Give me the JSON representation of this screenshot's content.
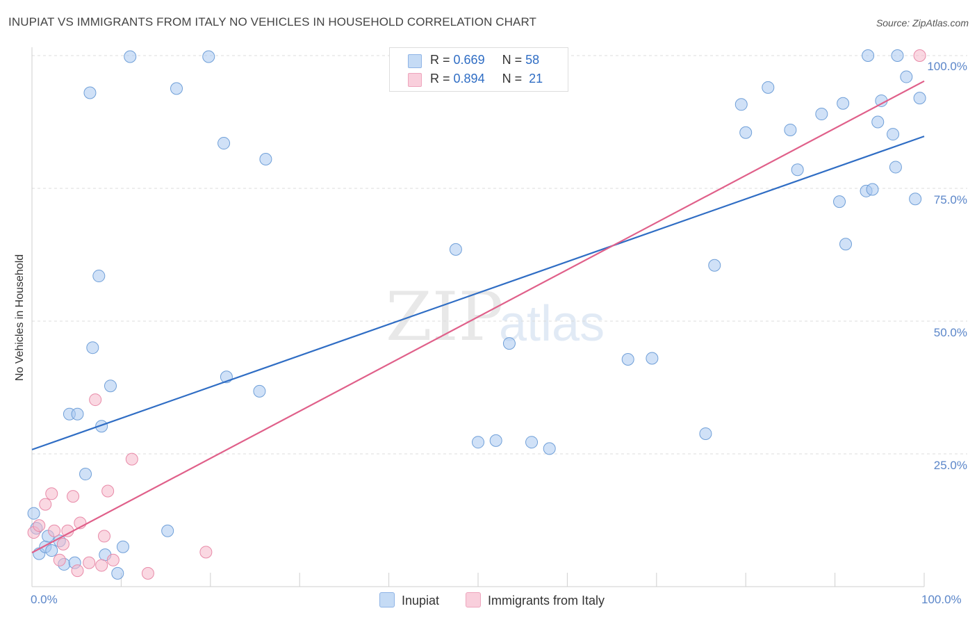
{
  "title": "INUPIAT VS IMMIGRANTS FROM ITALY NO VEHICLES IN HOUSEHOLD CORRELATION CHART",
  "source": "Source: ZipAtlas.com",
  "watermark": {
    "zip": "ZIP",
    "atlas": "atlas"
  },
  "chart_data": {
    "type": "scatter",
    "title": "INUPIAT VS IMMIGRANTS FROM ITALY NO VEHICLES IN HOUSEHOLD CORRELATION CHART",
    "xlabel": "",
    "ylabel": "No Vehicles in Household",
    "xlim": [
      0,
      100
    ],
    "ylim": [
      0,
      100
    ],
    "x_tick_labels": [
      "0.0%",
      "100.0%"
    ],
    "y_ticks": [
      25,
      50,
      75,
      100
    ],
    "y_tick_labels": [
      "25.0%",
      "50.0%",
      "75.0%",
      "100.0%"
    ],
    "grid": true,
    "legend": [
      {
        "name": "Inupiat",
        "r_label": "R =",
        "r": "0.669",
        "n_label": "N =",
        "n": "58",
        "color": "#a9c8f0"
      },
      {
        "name": "Immigrants from Italy",
        "r_label": "R =",
        "r": "0.894",
        "n_label": "N =",
        "n": "21",
        "color": "#f6b8cb"
      }
    ],
    "series": [
      {
        "name": "Inupiat",
        "color": "#a9c8f0",
        "stroke": "#6f9fd8",
        "trend": {
          "x": [
            0,
            100
          ],
          "y": [
            25.8,
            84.8
          ],
          "color": "#2f6dc4"
        },
        "points": [
          [
            0.2,
            13.8
          ],
          [
            0.8,
            6.2
          ],
          [
            1.5,
            7.5
          ],
          [
            1.8,
            9.5
          ],
          [
            2.2,
            6.8
          ],
          [
            3.1,
            8.6
          ],
          [
            3.6,
            4.2
          ],
          [
            4.8,
            4.5
          ],
          [
            4.2,
            32.5
          ],
          [
            5.1,
            32.5
          ],
          [
            6.0,
            21.2
          ],
          [
            6.5,
            93.0
          ],
          [
            6.8,
            45.0
          ],
          [
            7.5,
            58.5
          ],
          [
            7.8,
            30.2
          ],
          [
            8.2,
            6.0
          ],
          [
            8.8,
            37.8
          ],
          [
            9.6,
            2.5
          ],
          [
            10.2,
            7.5
          ],
          [
            11.0,
            99.8
          ],
          [
            15.2,
            10.5
          ],
          [
            16.2,
            93.8
          ],
          [
            19.8,
            99.8
          ],
          [
            21.5,
            83.5
          ],
          [
            21.8,
            39.5
          ],
          [
            25.5,
            36.8
          ],
          [
            26.2,
            80.5
          ],
          [
            47.5,
            63.5
          ],
          [
            50.0,
            27.2
          ],
          [
            52.0,
            27.5
          ],
          [
            53.5,
            45.8
          ],
          [
            56.0,
            27.2
          ],
          [
            58.0,
            26.0
          ],
          [
            66.8,
            42.8
          ],
          [
            69.5,
            43.0
          ],
          [
            75.5,
            28.8
          ],
          [
            76.5,
            60.5
          ],
          [
            79.5,
            90.8
          ],
          [
            80.0,
            85.5
          ],
          [
            82.5,
            94.0
          ],
          [
            85.0,
            86.0
          ],
          [
            85.8,
            78.5
          ],
          [
            88.5,
            89.0
          ],
          [
            90.5,
            72.5
          ],
          [
            90.9,
            91.0
          ],
          [
            91.2,
            64.5
          ],
          [
            93.5,
            74.5
          ],
          [
            93.7,
            100.0
          ],
          [
            94.2,
            74.8
          ],
          [
            94.8,
            87.5
          ],
          [
            95.2,
            91.5
          ],
          [
            96.5,
            85.2
          ],
          [
            96.8,
            79.0
          ],
          [
            97.0,
            100.0
          ],
          [
            98.0,
            96.0
          ],
          [
            99.0,
            73.0
          ],
          [
            99.5,
            92.0
          ],
          [
            0.5,
            11.0
          ]
        ]
      },
      {
        "name": "Immigrants from Italy",
        "color": "#f6b8cb",
        "stroke": "#e88aa8",
        "trend": {
          "x": [
            0,
            100
          ],
          "y": [
            6.4,
            95.2
          ],
          "color": "#e0608a"
        },
        "points": [
          [
            0.2,
            10.2
          ],
          [
            0.8,
            11.5
          ],
          [
            1.5,
            15.5
          ],
          [
            2.2,
            17.5
          ],
          [
            2.5,
            10.5
          ],
          [
            3.1,
            5.0
          ],
          [
            3.5,
            8.0
          ],
          [
            4.0,
            10.5
          ],
          [
            4.6,
            17.0
          ],
          [
            5.1,
            3.0
          ],
          [
            5.4,
            12.0
          ],
          [
            6.4,
            4.5
          ],
          [
            7.1,
            35.2
          ],
          [
            7.8,
            4.0
          ],
          [
            8.1,
            9.5
          ],
          [
            8.5,
            18.0
          ],
          [
            9.1,
            5.0
          ],
          [
            11.2,
            24.0
          ],
          [
            13.0,
            2.5
          ],
          [
            19.5,
            6.5
          ],
          [
            99.5,
            100.0
          ]
        ]
      }
    ]
  }
}
